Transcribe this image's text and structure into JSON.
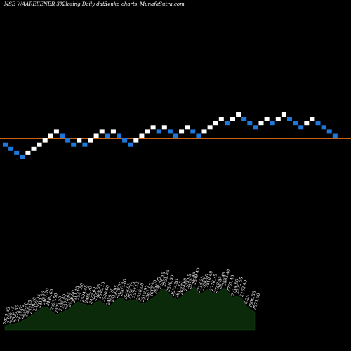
{
  "header": {
    "symbol_line": "NSE WAAREEENER 3%~",
    "desc": "Closing Daily data",
    "type_label": "Renko",
    "charts_label": "charts",
    "site": "MunafaSutra.com"
  },
  "colors": {
    "background": "#000000",
    "up_brick": "#ffffff",
    "down_brick": "#1e78dc",
    "ref_line": "#c86414",
    "volume_fill": "#0a2a0a"
  },
  "chart_data": {
    "type": "renko",
    "brick_percent": 3,
    "bricks": [
      {
        "level": 3,
        "dir": "down"
      },
      {
        "level": 2,
        "dir": "down"
      },
      {
        "level": 1,
        "dir": "down"
      },
      {
        "level": 0,
        "dir": "down"
      },
      {
        "level": 1,
        "dir": "up"
      },
      {
        "level": 2,
        "dir": "up"
      },
      {
        "level": 3,
        "dir": "up"
      },
      {
        "level": 4,
        "dir": "up"
      },
      {
        "level": 5,
        "dir": "up"
      },
      {
        "level": 6,
        "dir": "up"
      },
      {
        "level": 5,
        "dir": "down"
      },
      {
        "level": 4,
        "dir": "down"
      },
      {
        "level": 3,
        "dir": "down"
      },
      {
        "level": 4,
        "dir": "up"
      },
      {
        "level": 3,
        "dir": "down"
      },
      {
        "level": 4,
        "dir": "up"
      },
      {
        "level": 5,
        "dir": "up"
      },
      {
        "level": 6,
        "dir": "up"
      },
      {
        "level": 5,
        "dir": "down"
      },
      {
        "level": 6,
        "dir": "up"
      },
      {
        "level": 5,
        "dir": "down"
      },
      {
        "level": 4,
        "dir": "down"
      },
      {
        "level": 3,
        "dir": "down"
      },
      {
        "level": 4,
        "dir": "up"
      },
      {
        "level": 5,
        "dir": "up"
      },
      {
        "level": 6,
        "dir": "up"
      },
      {
        "level": 7,
        "dir": "up"
      },
      {
        "level": 6,
        "dir": "down"
      },
      {
        "level": 7,
        "dir": "up"
      },
      {
        "level": 6,
        "dir": "down"
      },
      {
        "level": 5,
        "dir": "down"
      },
      {
        "level": 6,
        "dir": "up"
      },
      {
        "level": 7,
        "dir": "up"
      },
      {
        "level": 6,
        "dir": "down"
      },
      {
        "level": 5,
        "dir": "down"
      },
      {
        "level": 6,
        "dir": "up"
      },
      {
        "level": 7,
        "dir": "up"
      },
      {
        "level": 8,
        "dir": "up"
      },
      {
        "level": 9,
        "dir": "up"
      },
      {
        "level": 8,
        "dir": "down"
      },
      {
        "level": 9,
        "dir": "up"
      },
      {
        "level": 10,
        "dir": "up"
      },
      {
        "level": 9,
        "dir": "down"
      },
      {
        "level": 8,
        "dir": "down"
      },
      {
        "level": 7,
        "dir": "down"
      },
      {
        "level": 8,
        "dir": "up"
      },
      {
        "level": 9,
        "dir": "up"
      },
      {
        "level": 8,
        "dir": "down"
      },
      {
        "level": 9,
        "dir": "up"
      },
      {
        "level": 10,
        "dir": "up"
      },
      {
        "level": 9,
        "dir": "down"
      },
      {
        "level": 8,
        "dir": "down"
      },
      {
        "level": 7,
        "dir": "down"
      },
      {
        "level": 8,
        "dir": "up"
      },
      {
        "level": 9,
        "dir": "up"
      },
      {
        "level": 8,
        "dir": "down"
      },
      {
        "level": 7,
        "dir": "down"
      },
      {
        "level": 6,
        "dir": "down"
      },
      {
        "level": 5,
        "dir": "down"
      }
    ],
    "price_labels": [
      "2421.35",
      "2369.15",
      "2323.85",
      "2270.05",
      "2274.70",
      "2288.15",
      "2346.70",
      "2359.35",
      "2411.65",
      "2487.70",
      "2449.60",
      "2393.50",
      "2373.50",
      "2382.40",
      "2378.65",
      "2436.80",
      "2511.15",
      "2541.50",
      "2504.45",
      "2488.70",
      "2472.60",
      "2522.05",
      "2545.10",
      "2500.60",
      "2459.75",
      "2513.95",
      "2579.35",
      "2603.10",
      "2548.85",
      "2566.15",
      "2577.05",
      "2550.00",
      "2519.95",
      "2561.05",
      "2612.70",
      "2646.75",
      "2738.15",
      "2751.85",
      "2676.90",
      "2633.20",
      "2611.85",
      "2663.60",
      "2733.95",
      "2758.45",
      "2839.40",
      "2718.25",
      "2768.00",
      "2810.40",
      "2776.35",
      "2749.45",
      "2835.45",
      "2862.40",
      "2767.40",
      "2714.60",
      "2775.55",
      "2752.40",
      "6.25",
      "2606.86",
      "2571.90"
    ],
    "volumes": [
      8,
      10,
      12,
      14,
      18,
      22,
      28,
      34,
      40,
      46,
      44,
      36,
      30,
      34,
      38,
      42,
      50,
      56,
      52,
      50,
      48,
      54,
      58,
      52,
      46,
      52,
      60,
      64,
      56,
      58,
      60,
      56,
      52,
      56,
      62,
      68,
      78,
      82,
      72,
      64,
      60,
      66,
      74,
      78,
      86,
      70,
      74,
      80,
      74,
      70,
      78,
      84,
      72,
      64,
      68,
      62,
      48,
      40,
      36
    ]
  }
}
